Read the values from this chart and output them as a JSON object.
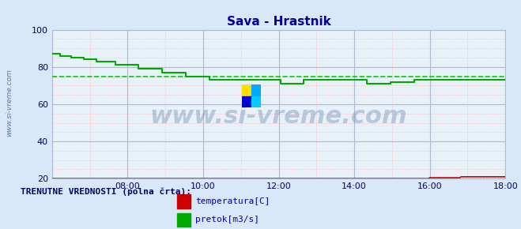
{
  "title": "Sava - Hrastnik",
  "title_color": "#000099",
  "title_fontsize": 11,
  "bg_color": "#d8e8f8",
  "plot_bg_color": "#e8f0f8",
  "grid_color_major": "#c0c8d8",
  "grid_color_minor": "#ffaaaa",
  "xlim": [
    0,
    288
  ],
  "ylim": [
    20,
    100
  ],
  "yticks": [
    20,
    40,
    60,
    80,
    100
  ],
  "xtick_labels": [
    "08:00",
    "10:00",
    "12:00",
    "14:00",
    "16:00",
    "18:00"
  ],
  "xtick_positions": [
    48,
    96,
    144,
    192,
    240,
    288
  ],
  "ylabel_text": "www.si-vreme.com",
  "watermark_text": "www.si-vreme.com",
  "pretok_color": "#00aa00",
  "pretok_avg_color": "#00cc00",
  "temperatura_color": "#cc0000",
  "temperatura_avg_color": "#cc0000",
  "legend_label1": "temperatura[C]",
  "legend_label2": "pretok[m3/s]",
  "legend_text": "TRENUTNE VREDNOSTI (polna črta):",
  "pretok_avg": 75.0,
  "temperatura_avg": 20.0
}
